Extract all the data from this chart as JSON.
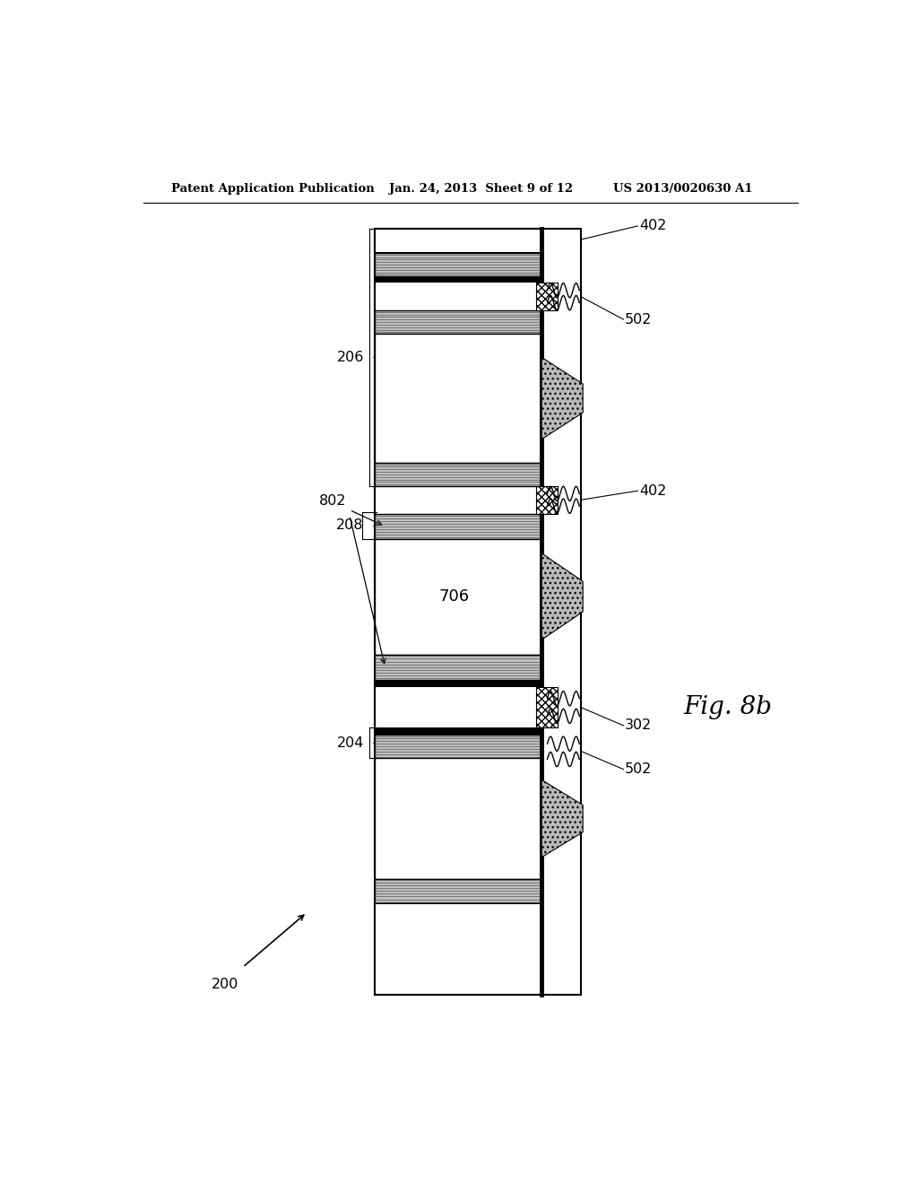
{
  "title_left": "Patent Application Publication",
  "title_mid": "Jan. 24, 2013  Sheet 9 of 12",
  "title_right": "US 2013/0020630 A1",
  "fig_label": "Fig. 8b",
  "ref_200": "200",
  "ref_204": "204",
  "ref_206": "206",
  "ref_208": "208",
  "ref_802": "802",
  "ref_302": "302",
  "ref_402": "402",
  "ref_502": "502",
  "ref_706": "706",
  "bg_color": "#ffffff"
}
